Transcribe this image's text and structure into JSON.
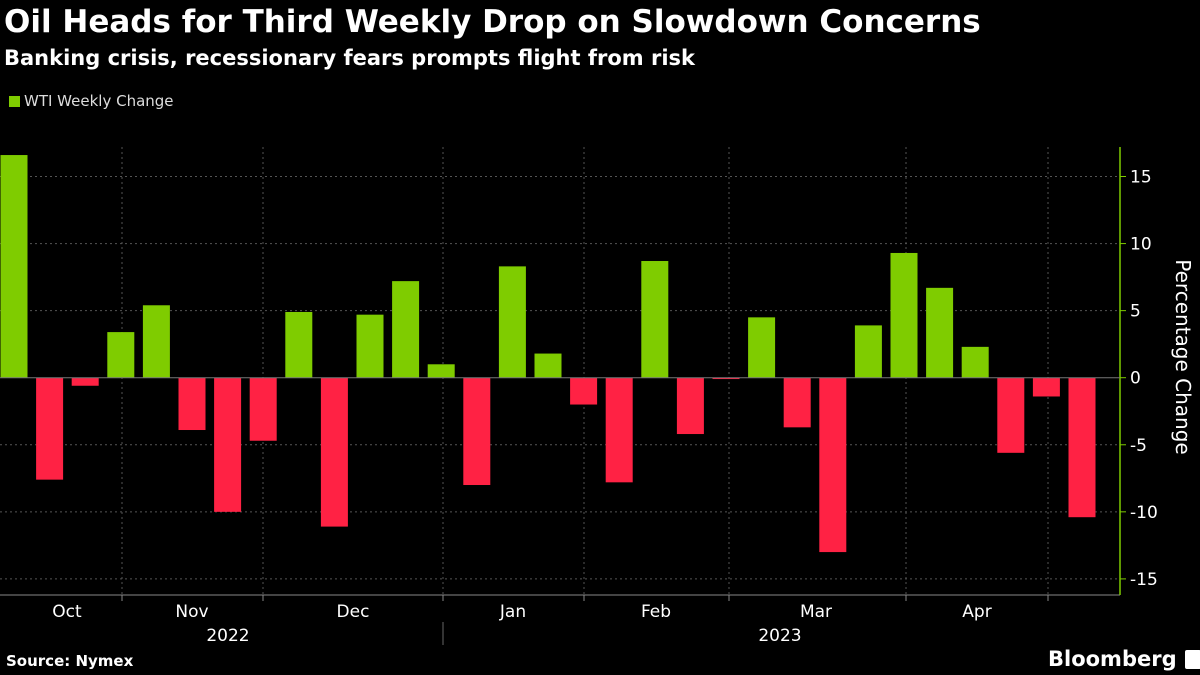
{
  "chart_data": {
    "type": "bar",
    "title": "Oil Heads for Third Weekly Drop on Slowdown Concerns",
    "subtitle": "Banking crisis, recessionary fears prompts flight from risk",
    "legend": [
      "WTI Weekly Change"
    ],
    "legend_placement": "top-left",
    "ylabel": "Percentage Change",
    "ylim": [
      -16.2,
      17.2
    ],
    "yticks": [
      15,
      10,
      5,
      0,
      -5,
      -10,
      -15
    ],
    "y_axis_side": "right",
    "grid": true,
    "x_month_labels": [
      "Oct",
      "Nov",
      "Dec",
      "Jan",
      "Feb",
      "Mar",
      "Apr"
    ],
    "x_year_labels": [
      "2022",
      "2023"
    ],
    "values": [
      16.6,
      -7.6,
      -0.6,
      3.4,
      5.4,
      -3.9,
      -10.0,
      -4.7,
      4.9,
      -11.1,
      4.7,
      7.2,
      1.0,
      -8.0,
      8.3,
      1.8,
      -2.0,
      -7.8,
      8.7,
      -4.2,
      -0.1,
      4.5,
      -3.7,
      -13.0,
      3.9,
      9.3,
      6.7,
      2.3,
      -5.6,
      -1.4,
      -10.4
    ],
    "colors": {
      "positive": "#7fcc00",
      "negative": "#ff2244",
      "axis": "#7fcc00",
      "grid": "#555555"
    }
  },
  "footer": {
    "source": "Source: Nymex",
    "brand": "Bloomberg"
  }
}
